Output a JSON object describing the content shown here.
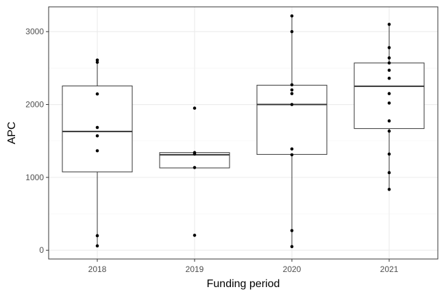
{
  "chart_data": {
    "type": "boxplot",
    "xlabel": "Funding period",
    "ylabel": "APC",
    "ylim": [
      -120,
      3340
    ],
    "yticks": [
      0,
      1000,
      2000,
      3000
    ],
    "grid": true,
    "categories": [
      "2018",
      "2019",
      "2020",
      "2021"
    ],
    "boxes": [
      {
        "category": "2018",
        "min": 60,
        "q1": 1075,
        "median": 1630,
        "q3": 2255,
        "max": 2615
      },
      {
        "category": "2019",
        "min": 1130,
        "q1": 1130,
        "median": 1310,
        "q3": 1340,
        "max": 1340
      },
      {
        "category": "2020",
        "min": 50,
        "q1": 1315,
        "median": 2000,
        "q3": 2265,
        "max": 3210
      },
      {
        "category": "2021",
        "min": 835,
        "q1": 1670,
        "median": 2250,
        "q3": 2570,
        "max": 3100
      }
    ],
    "points": [
      {
        "category": "2018",
        "values": [
          2610,
          2580,
          2145,
          1685,
          1570,
          1365,
          200,
          60
        ]
      },
      {
        "category": "2019",
        "values": [
          1950,
          1340,
          1320,
          1135,
          205
        ]
      },
      {
        "category": "2020",
        "values": [
          3215,
          3000,
          2270,
          2200,
          2150,
          2000,
          1390,
          1310,
          270,
          50
        ]
      },
      {
        "category": "2021",
        "values": [
          3100,
          2780,
          2640,
          2570,
          2470,
          2360,
          2150,
          2020,
          1775,
          1635,
          1320,
          1065,
          835
        ]
      }
    ],
    "colors": {
      "panel_border": "#333333",
      "grid_major": "#ebebeb",
      "grid_minor": "#f5f5f5",
      "box_stroke": "#333333",
      "median": "#333333",
      "point": "#000000",
      "tick_text": "#4d4d4d",
      "title_text": "#000000"
    }
  }
}
